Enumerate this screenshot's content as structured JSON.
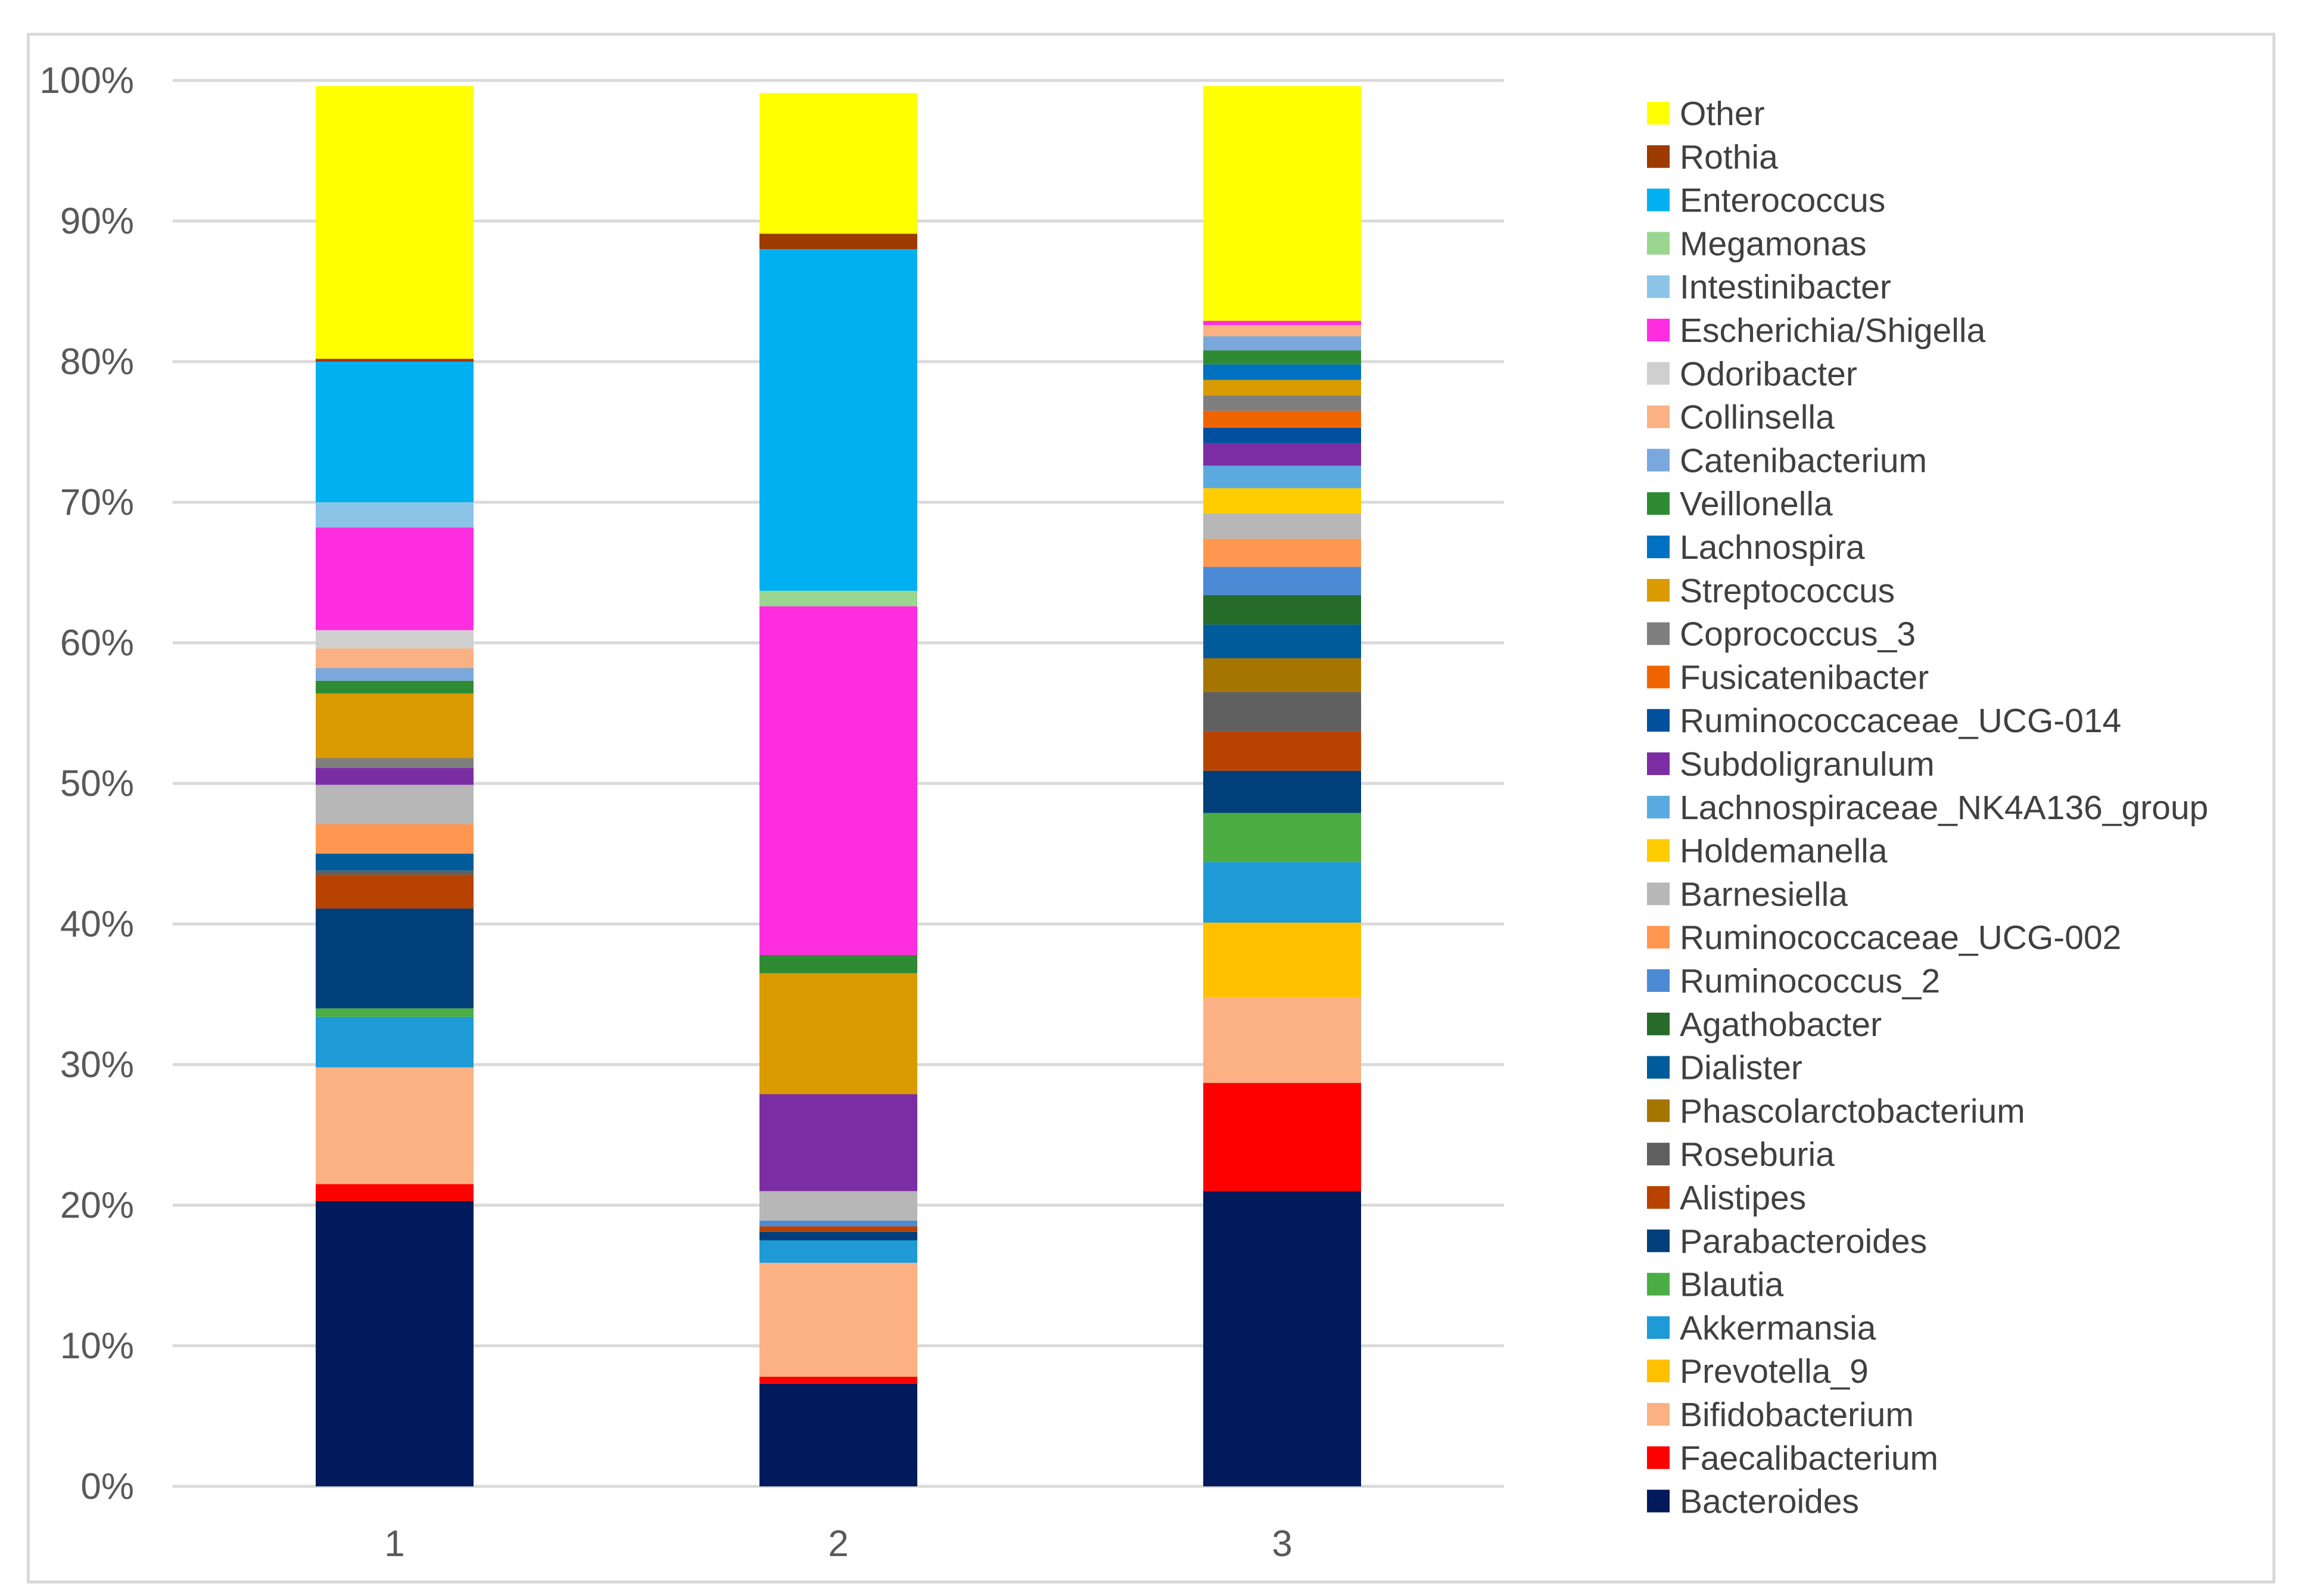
{
  "chart_data": {
    "type": "bar",
    "stacked": true,
    "percent_stacked": true,
    "title": "",
    "xlabel": "",
    "ylabel": "",
    "ylim": [
      0,
      100
    ],
    "y_ticks": [
      "0%",
      "10%",
      "20%",
      "30%",
      "40%",
      "50%",
      "60%",
      "70%",
      "80%",
      "90%",
      "100%"
    ],
    "categories": [
      "1",
      "2",
      "3"
    ],
    "grid": "horizontal",
    "legend_placement": "right",
    "series": [
      {
        "name": "Bacteroides",
        "color": "#001a5c",
        "values": [
          20.3,
          7.3,
          21.0
        ]
      },
      {
        "name": "Faecalibacterium",
        "color": "#ff0000",
        "values": [
          1.2,
          0.5,
          7.7
        ]
      },
      {
        "name": "Bifidobacterium",
        "color": "#fbb183",
        "values": [
          8.3,
          8.1,
          6.1
        ]
      },
      {
        "name": "Prevotella_9",
        "color": "#ffc000",
        "values": [
          0.0,
          0.0,
          5.3
        ]
      },
      {
        "name": "Akkermansia",
        "color": "#1e9ad6",
        "values": [
          3.6,
          1.6,
          4.3
        ]
      },
      {
        "name": "Blautia",
        "color": "#4bad43",
        "values": [
          0.6,
          0.0,
          3.5
        ]
      },
      {
        "name": "Parabacteroides",
        "color": "#003f7a",
        "values": [
          7.1,
          0.6,
          3.0
        ]
      },
      {
        "name": "Alistipes",
        "color": "#b84200",
        "values": [
          2.4,
          0.4,
          2.8
        ]
      },
      {
        "name": "Roseburia",
        "color": "#5f5f5f",
        "values": [
          0.3,
          0.0,
          2.8
        ]
      },
      {
        "name": "Phascolarctobacterium",
        "color": "#a67500",
        "values": [
          0.0,
          0.0,
          2.4
        ]
      },
      {
        "name": "Dialister",
        "color": "#005b9a",
        "values": [
          1.2,
          0.0,
          2.4
        ]
      },
      {
        "name": "Agathobacter",
        "color": "#266b2a",
        "values": [
          0.0,
          0.0,
          2.1
        ]
      },
      {
        "name": "Ruminococcus_2",
        "color": "#4d8ad6",
        "values": [
          0.0,
          0.4,
          2.0
        ]
      },
      {
        "name": "Ruminococcaceae_UCG-002",
        "color": "#ff9750",
        "values": [
          2.1,
          0.0,
          2.0
        ]
      },
      {
        "name": "Barnesiella",
        "color": "#b7b7b7",
        "values": [
          2.8,
          2.1,
          1.8
        ]
      },
      {
        "name": "Holdemanella",
        "color": "#ffcc00",
        "values": [
          0.0,
          0.0,
          1.8
        ]
      },
      {
        "name": "Lachnospiraceae_NK4A136_group",
        "color": "#5aaae0",
        "values": [
          0.0,
          0.0,
          1.6
        ]
      },
      {
        "name": "Subdoligranulum",
        "color": "#7b2ea3",
        "values": [
          1.2,
          6.9,
          1.6
        ]
      },
      {
        "name": "Ruminococcaceae_UCG-014",
        "color": "#00509e",
        "values": [
          0.0,
          0.0,
          1.1
        ]
      },
      {
        "name": "Fusicatenibacter",
        "color": "#f06400",
        "values": [
          0.0,
          0.0,
          1.2
        ]
      },
      {
        "name": "Coprococcus_3",
        "color": "#7f7f7f",
        "values": [
          0.7,
          0.0,
          1.1
        ]
      },
      {
        "name": "Streptococcus",
        "color": "#d99b00",
        "values": [
          4.6,
          8.6,
          1.1
        ]
      },
      {
        "name": "Lachnospira",
        "color": "#0070c0",
        "values": [
          0.0,
          0.0,
          1.1
        ]
      },
      {
        "name": "Veillonella",
        "color": "#2e8b33",
        "values": [
          0.9,
          1.3,
          1.0
        ]
      },
      {
        "name": "Catenibacterium",
        "color": "#7aa8dc",
        "values": [
          0.9,
          0.0,
          1.0
        ]
      },
      {
        "name": "Collinsella",
        "color": "#fbb183",
        "values": [
          1.4,
          0.0,
          0.8
        ]
      },
      {
        "name": "Odoribacter",
        "color": "#cfcfcf",
        "values": [
          1.3,
          0.0,
          0.0
        ]
      },
      {
        "name": "Escherichia/Shigella",
        "color": "#ff2de0",
        "values": [
          7.3,
          24.8,
          0.3
        ]
      },
      {
        "name": "Intestinibacter",
        "color": "#8cc4e8",
        "values": [
          1.8,
          0.0,
          0.0
        ]
      },
      {
        "name": "Megamonas",
        "color": "#9ad68f",
        "values": [
          0.0,
          1.1,
          0.0
        ]
      },
      {
        "name": "Enterococcus",
        "color": "#00b0f0",
        "values": [
          10.0,
          24.3,
          0.0
        ]
      },
      {
        "name": "Rothia",
        "color": "#9c3a00",
        "values": [
          0.2,
          1.1,
          0.0
        ]
      },
      {
        "name": "Other",
        "color": "#ffff00",
        "values": [
          19.4,
          10.0,
          16.7
        ]
      }
    ]
  }
}
